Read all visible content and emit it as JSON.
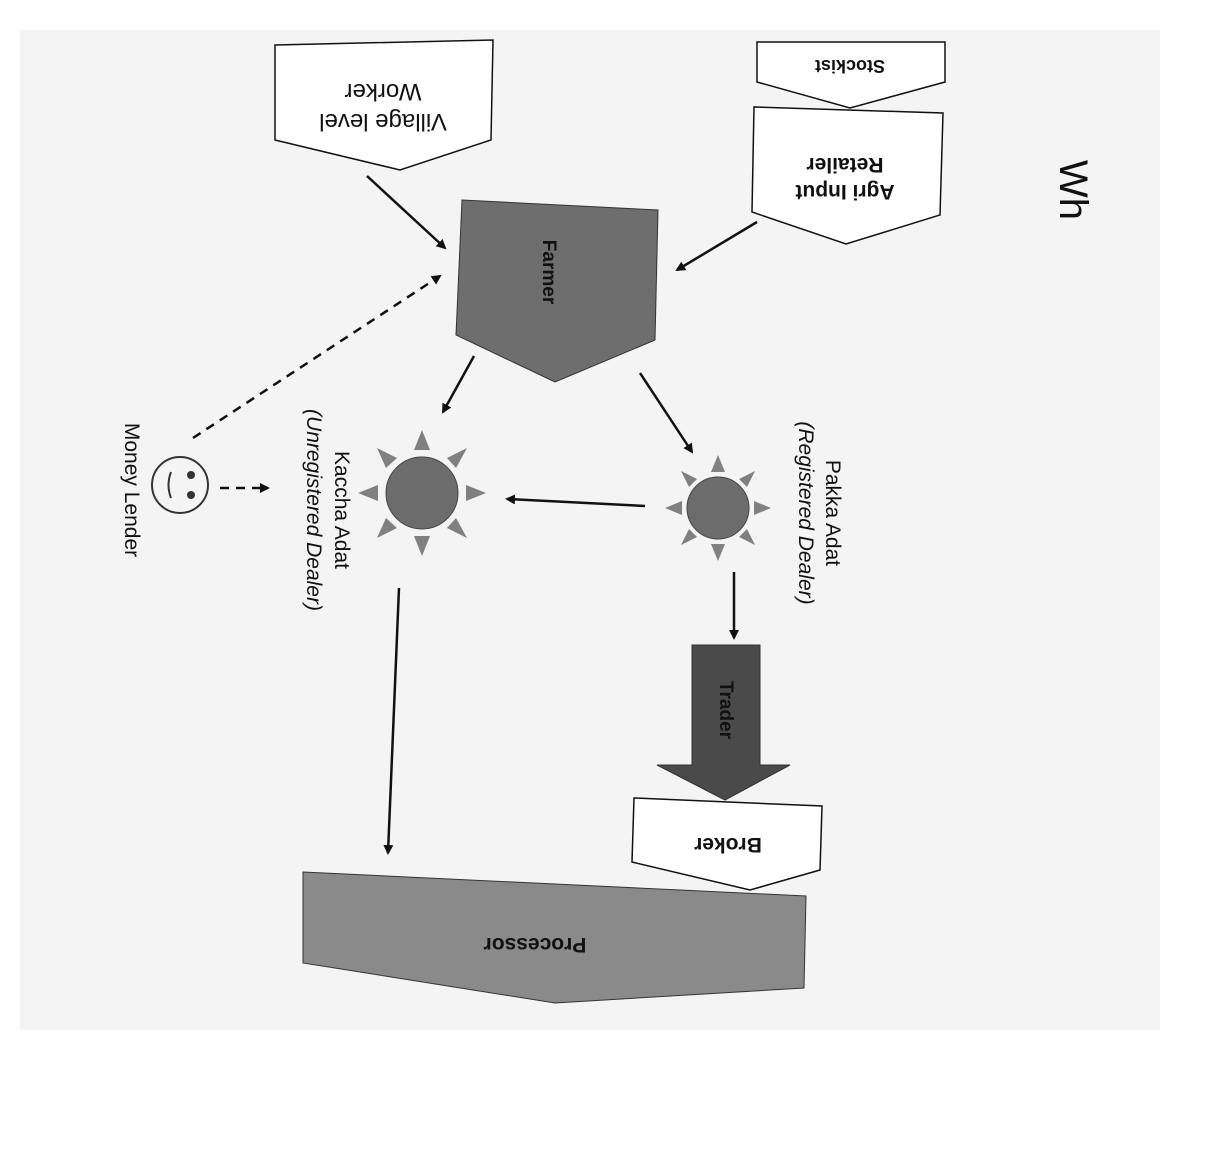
{
  "header_fragment": "Wh",
  "nodes": {
    "stockist": "Stockist",
    "village_worker": [
      "Village level",
      "Worker"
    ],
    "agri_retailer": [
      "Agri Input",
      "Retailer"
    ],
    "farmer": "Farmer",
    "kaccha_adat": [
      "Kaccha Adat",
      "(Unregistered Dealer)"
    ],
    "pakka_adat": [
      "Pakka Adat",
      "(Registered Dealer)"
    ],
    "money_lender": "Money Lender",
    "trader": "Trader",
    "broker": "Broker",
    "processor": "Processor"
  }
}
